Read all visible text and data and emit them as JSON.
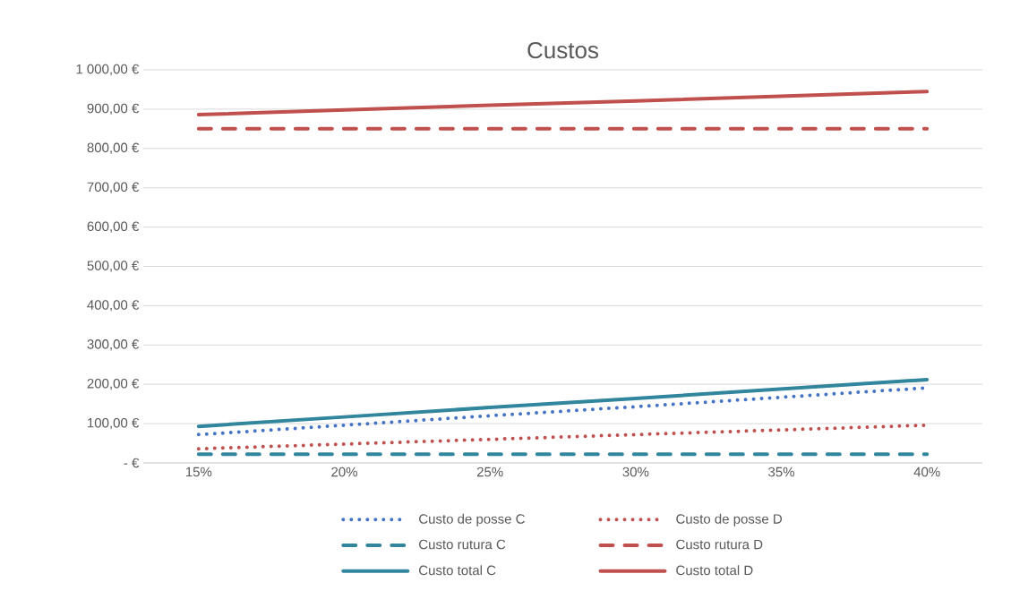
{
  "chart_data": {
    "type": "line",
    "title": "Custos",
    "categories": [
      "15%",
      "20%",
      "25%",
      "30%",
      "35%",
      "40%"
    ],
    "series": [
      {
        "name": "Custo de posse  C",
        "color": "#4472c4",
        "line_style": "dotted",
        "values": [
          72,
          96,
          120,
          143,
          167,
          191
        ]
      },
      {
        "name": "Custo de posse D",
        "color": "#c0504d",
        "line_style": "dotted",
        "values": [
          36,
          48,
          60,
          72,
          84,
          96
        ]
      },
      {
        "name": "Custo rutura  C",
        "color": "#31859c",
        "line_style": "dashed",
        "values": [
          22,
          22,
          22,
          22,
          22,
          22
        ]
      },
      {
        "name": "Custo rutura D",
        "color": "#c0504d",
        "line_style": "dashed",
        "values": [
          850,
          850,
          850,
          850,
          850,
          850
        ]
      },
      {
        "name": "Custo total C",
        "color": "#31859c",
        "line_style": "solid",
        "values": [
          93,
          117,
          141,
          164,
          188,
          212
        ]
      },
      {
        "name": "Custo total D",
        "color": "#c0504d",
        "line_style": "solid",
        "values": [
          886,
          898,
          910,
          921,
          933,
          945
        ]
      }
    ],
    "ylim": [
      0,
      1000
    ],
    "yticks": [
      {
        "value": 0,
        "label": "-   €"
      },
      {
        "value": 100,
        "label": "100,00 €"
      },
      {
        "value": 200,
        "label": "200,00 €"
      },
      {
        "value": 300,
        "label": "300,00 €"
      },
      {
        "value": 400,
        "label": "400,00 €"
      },
      {
        "value": 500,
        "label": "500,00 €"
      },
      {
        "value": 600,
        "label": "600,00 €"
      },
      {
        "value": 700,
        "label": "700,00 €"
      },
      {
        "value": 800,
        "label": "800,00 €"
      },
      {
        "value": 900,
        "label": "900,00 €"
      },
      {
        "value": 1000,
        "label": "1 000,00 €"
      }
    ],
    "grid": "y",
    "legend": "bottom"
  }
}
